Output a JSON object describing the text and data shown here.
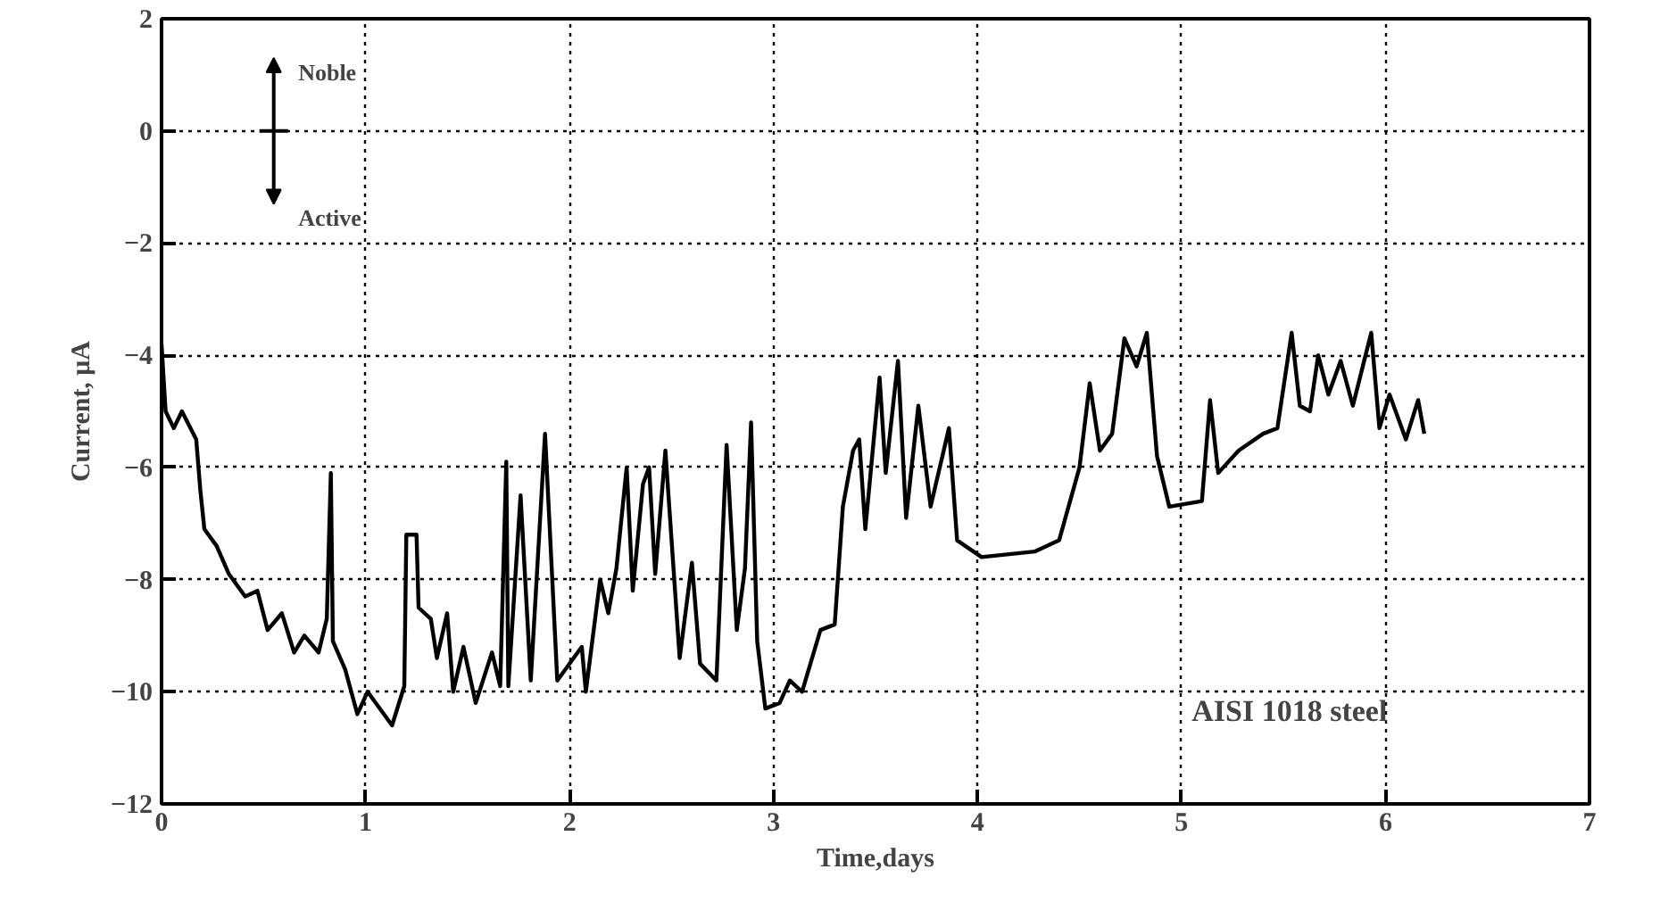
{
  "chart_data": {
    "type": "line",
    "xlabel": "Time,days",
    "ylabel": "Current, μA",
    "xlim": [
      0,
      7
    ],
    "ylim": [
      -12,
      2
    ],
    "xticks": [
      0,
      1,
      2,
      3,
      4,
      5,
      6,
      7
    ],
    "yticks": [
      -12,
      -10,
      -8,
      -6,
      -4,
      -2,
      0,
      2
    ],
    "grid": true,
    "line_style": "solid",
    "marker": "none",
    "annotations": [
      "Noble",
      "Active",
      "AISI 1018 steel"
    ],
    "series": [
      {
        "color": "#000000",
        "x": [
          0,
          0.02,
          0.06,
          0.1,
          0.17,
          0.19,
          0.21,
          0.27,
          0.33,
          0.41,
          0.47,
          0.52,
          0.59,
          0.65,
          0.7,
          0.77,
          0.81,
          0.83,
          0.84,
          0.9,
          0.96,
          1.01,
          1.13,
          1.19,
          1.2,
          1.25,
          1.26,
          1.32,
          1.35,
          1.4,
          1.43,
          1.48,
          1.54,
          1.62,
          1.66,
          1.69,
          1.7,
          1.76,
          1.81,
          1.88,
          1.94,
          2.06,
          2.08,
          2.15,
          2.19,
          2.23,
          2.28,
          2.31,
          2.36,
          2.39,
          2.42,
          2.47,
          2.54,
          2.6,
          2.64,
          2.72,
          2.77,
          2.82,
          2.86,
          2.89,
          2.92,
          2.96,
          3.03,
          3.08,
          3.14,
          3.23,
          3.3,
          3.34,
          3.39,
          3.42,
          3.45,
          3.52,
          3.55,
          3.61,
          3.65,
          3.71,
          3.77,
          3.86,
          3.9,
          4.02,
          4.28,
          4.4,
          4.5,
          4.55,
          4.6,
          4.66,
          4.72,
          4.78,
          4.83,
          4.88,
          4.94,
          5.1,
          5.14,
          5.18,
          5.28,
          5.4,
          5.47,
          5.54,
          5.58,
          5.63,
          5.67,
          5.72,
          5.78,
          5.84,
          5.93,
          5.97,
          6.02,
          6.1,
          6.16,
          6.19
        ],
        "values": [
          -3.8,
          -5.0,
          -5.3,
          -5.0,
          -5.5,
          -6.4,
          -7.1,
          -7.4,
          -7.9,
          -8.3,
          -8.2,
          -8.9,
          -8.6,
          -9.3,
          -9.0,
          -9.3,
          -8.7,
          -6.1,
          -9.1,
          -9.6,
          -10.4,
          -10.0,
          -10.6,
          -9.9,
          -7.2,
          -7.2,
          -8.5,
          -8.7,
          -9.4,
          -8.6,
          -10.0,
          -9.2,
          -10.2,
          -9.3,
          -9.9,
          -5.9,
          -9.9,
          -6.5,
          -9.8,
          -5.4,
          -9.8,
          -9.2,
          -10.0,
          -8.0,
          -8.6,
          -7.8,
          -6.0,
          -8.2,
          -6.3,
          -6.0,
          -7.9,
          -5.7,
          -9.4,
          -7.7,
          -9.5,
          -9.8,
          -5.6,
          -8.9,
          -7.8,
          -5.2,
          -9.1,
          -10.3,
          -10.2,
          -9.8,
          -10.0,
          -8.9,
          -8.8,
          -6.7,
          -5.7,
          -5.5,
          -7.1,
          -4.4,
          -6.1,
          -4.1,
          -6.9,
          -4.9,
          -6.7,
          -5.3,
          -7.3,
          -7.6,
          -7.5,
          -7.3,
          -6.0,
          -4.5,
          -5.7,
          -5.4,
          -3.7,
          -4.2,
          -3.6,
          -5.8,
          -6.7,
          -6.6,
          -4.8,
          -6.1,
          -5.7,
          -5.4,
          -5.3,
          -3.6,
          -4.9,
          -5.0,
          -4.0,
          -4.7,
          -4.1,
          -4.9,
          -3.6,
          -5.3,
          -4.7,
          -5.5,
          -4.8,
          -5.4
        ]
      }
    ]
  }
}
